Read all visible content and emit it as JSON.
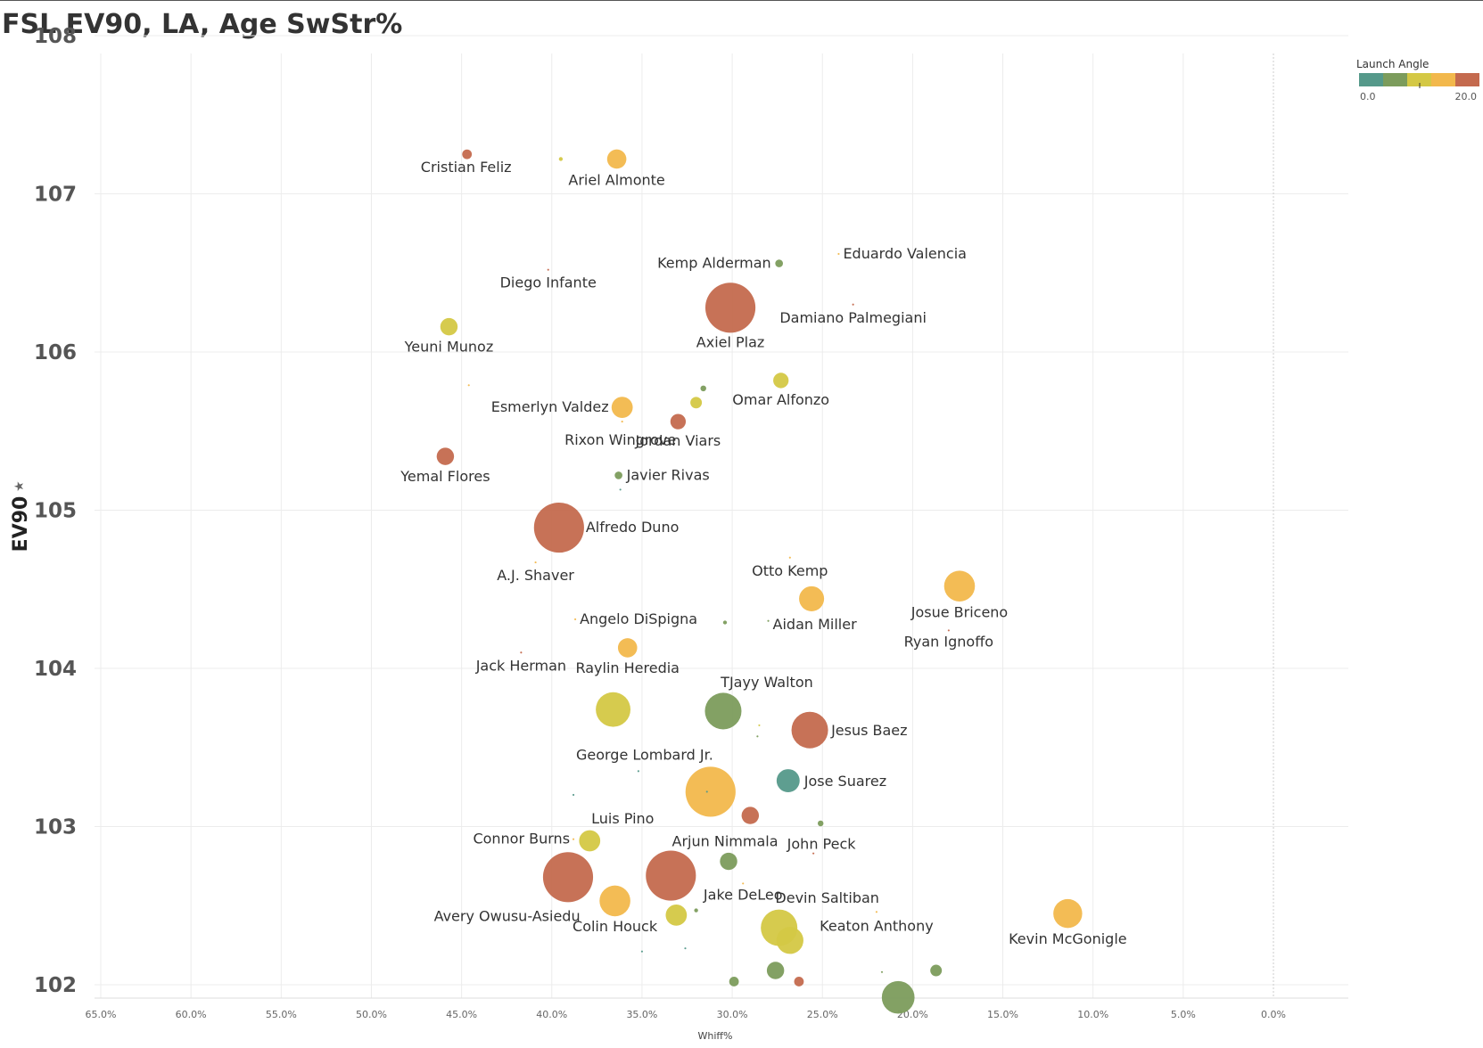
{
  "title": "FSL EV90, LA, Age SwStr%",
  "chart_data": {
    "type": "scatter",
    "title": "FSL EV90, LA, Age SwStr%",
    "xlabel": "Whiff%",
    "ylabel": "EV90",
    "x_reversed": true,
    "xlim": [
      0.665,
      -0.04
    ],
    "ylim": [
      101.9,
      108.1
    ],
    "x_ticks": [
      0.65,
      0.6,
      0.55,
      0.5,
      0.45,
      0.4,
      0.35,
      0.3,
      0.25,
      0.2,
      0.15,
      0.1,
      0.05,
      0.0
    ],
    "x_tick_labels": [
      "65.0%",
      "60.0%",
      "55.0%",
      "50.0%",
      "45.0%",
      "40.0%",
      "35.0%",
      "30.0%",
      "25.0%",
      "20.0%",
      "15.0%",
      "10.0%",
      "5.0%",
      "0.0%"
    ],
    "y_ticks": [
      102,
      103,
      104,
      105,
      106,
      107,
      108
    ],
    "y_tick_labels": [
      "102",
      "103",
      "104",
      "105",
      "106",
      "107",
      "108"
    ],
    "grid": true,
    "legend": {
      "title": "Launch Angle",
      "placement": "top-right",
      "min_label": "0.0",
      "max_label": "20.0",
      "colors": [
        "#55998a",
        "#7c9c5c",
        "#d4c845",
        "#f2b84c",
        "#c46a4e"
      ]
    },
    "points": [
      {
        "name": "Cristian Feliz",
        "x": 0.447,
        "y": 107.25,
        "size": 5,
        "la": 20.0
      },
      {
        "name": "",
        "x": 0.395,
        "y": 107.22,
        "size": 2,
        "la": 10.0
      },
      {
        "name": "Ariel Almonte",
        "x": 0.364,
        "y": 107.22,
        "size": 10,
        "la": 15.0
      },
      {
        "name": "Eduardo Valencia",
        "x": 0.241,
        "y": 106.62,
        "size": 1,
        "la": 15.0
      },
      {
        "name": "Kemp Alderman",
        "x": 0.274,
        "y": 106.56,
        "size": 4,
        "la": 5.0
      },
      {
        "name": "Diego Infante",
        "x": 0.402,
        "y": 106.52,
        "size": 1,
        "la": 20.0
      },
      {
        "name": "Axiel Plaz",
        "x": 0.301,
        "y": 106.28,
        "size": 26,
        "la": 20.0
      },
      {
        "name": "Damiano Palmegiani",
        "x": 0.233,
        "y": 106.3,
        "size": 1,
        "la": 20.0
      },
      {
        "name": "Yeuni Munoz",
        "x": 0.457,
        "y": 106.16,
        "size": 9,
        "la": 10.0
      },
      {
        "name": "Omar Alfonzo",
        "x": 0.273,
        "y": 105.82,
        "size": 8,
        "la": 10.0
      },
      {
        "name": "",
        "x": 0.446,
        "y": 105.79,
        "size": 1,
        "la": 15.0
      },
      {
        "name": "",
        "x": 0.316,
        "y": 105.77,
        "size": 3,
        "la": 5.0
      },
      {
        "name": "",
        "x": 0.32,
        "y": 105.68,
        "size": 6,
        "la": 10.0
      },
      {
        "name": "Esmerlyn Valdez",
        "x": 0.361,
        "y": 105.65,
        "size": 11,
        "la": 15.0
      },
      {
        "name": "Jordan Viars",
        "x": 0.33,
        "y": 105.56,
        "size": 8,
        "la": 20.0
      },
      {
        "name": "Rixon Wingrove",
        "x": 0.361,
        "y": 105.56,
        "size": 1,
        "la": 15.0
      },
      {
        "name": "Yemal Flores",
        "x": 0.459,
        "y": 105.34,
        "size": 9,
        "la": 20.0
      },
      {
        "name": "Javier Rivas",
        "x": 0.363,
        "y": 105.22,
        "size": 4,
        "la": 5.0
      },
      {
        "name": "",
        "x": 0.362,
        "y": 105.13,
        "size": 1,
        "la": 0.0
      },
      {
        "name": "Alfredo Duno",
        "x": 0.396,
        "y": 104.89,
        "size": 26,
        "la": 20.0
      },
      {
        "name": "Otto Kemp",
        "x": 0.268,
        "y": 104.7,
        "size": 1,
        "la": 15.0
      },
      {
        "name": "A.J. Shaver",
        "x": 0.409,
        "y": 104.67,
        "size": 1,
        "la": 15.0
      },
      {
        "name": "Josue Briceno",
        "x": 0.174,
        "y": 104.52,
        "size": 16,
        "la": 15.0
      },
      {
        "name": "",
        "x": 0.256,
        "y": 104.44,
        "size": 13,
        "la": 15.0
      },
      {
        "name": "Angelo DiSpigna",
        "x": 0.387,
        "y": 104.31,
        "size": 1,
        "la": 15.0
      },
      {
        "name": "Aidan Miller",
        "x": 0.28,
        "y": 104.3,
        "size": 1,
        "la": 5.0
      },
      {
        "name": "",
        "x": 0.304,
        "y": 104.29,
        "size": 2,
        "la": 5.0
      },
      {
        "name": "Ryan Ignoffo",
        "x": 0.18,
        "y": 104.24,
        "size": 1,
        "la": 20.0
      },
      {
        "name": "Jack Herman",
        "x": 0.417,
        "y": 104.1,
        "size": 1,
        "la": 20.0
      },
      {
        "name": "Raylin Heredia",
        "x": 0.358,
        "y": 104.13,
        "size": 10,
        "la": 15.0
      },
      {
        "name": "",
        "x": 0.366,
        "y": 103.74,
        "size": 18,
        "la": 10.0
      },
      {
        "name": "TJayy Walton",
        "x": 0.305,
        "y": 103.73,
        "size": 19,
        "la": 5.0
      },
      {
        "name": "",
        "x": 0.285,
        "y": 103.64,
        "size": 1,
        "la": 10.0
      },
      {
        "name": "Jesus Baez",
        "x": 0.257,
        "y": 103.61,
        "size": 19,
        "la": 20.0
      },
      {
        "name": "",
        "x": 0.286,
        "y": 103.57,
        "size": 1,
        "la": 5.0
      },
      {
        "name": "George Lombard Jr.",
        "x": 0.352,
        "y": 103.35,
        "size": 1,
        "la": 0.0
      },
      {
        "name": "Jose Suarez",
        "x": 0.269,
        "y": 103.29,
        "size": 12,
        "la": 0.0
      },
      {
        "name": "",
        "x": 0.312,
        "y": 103.22,
        "size": 26,
        "la": 15.0
      },
      {
        "name": "",
        "x": 0.314,
        "y": 103.22,
        "size": 1,
        "la": 0.0
      },
      {
        "name": "",
        "x": 0.388,
        "y": 103.2,
        "size": 1,
        "la": 0.0
      },
      {
        "name": "Luis Pino",
        "x": 0.29,
        "y": 103.07,
        "size": 9,
        "la": 20.0
      },
      {
        "name": "",
        "x": 0.251,
        "y": 103.02,
        "size": 3,
        "la": 5.0
      },
      {
        "name": "Connor Burns",
        "x": 0.388,
        "y": 102.92,
        "size": 1,
        "la": 15.0
      },
      {
        "name": "",
        "x": 0.379,
        "y": 102.91,
        "size": 11,
        "la": 10.0
      },
      {
        "name": "Arjun Nimmala",
        "x": 0.302,
        "y": 102.78,
        "size": 9,
        "la": 5.0
      },
      {
        "name": "John Peck",
        "x": 0.255,
        "y": 102.83,
        "size": 1,
        "la": 20.0
      },
      {
        "name": "",
        "x": 0.391,
        "y": 102.68,
        "size": 26,
        "la": 20.0
      },
      {
        "name": "",
        "x": 0.334,
        "y": 102.69,
        "size": 26,
        "la": 20.0
      },
      {
        "name": "Jake DeLeo",
        "x": 0.294,
        "y": 102.64,
        "size": 1,
        "la": 15.0
      },
      {
        "name": "Colin Houck",
        "x": 0.365,
        "y": 102.53,
        "size": 16,
        "la": 15.0
      },
      {
        "name": "Avery Owusu-Asiedu",
        "x": 0.32,
        "y": 102.47,
        "size": 2,
        "la": 5.0
      },
      {
        "name": "",
        "x": 0.331,
        "y": 102.44,
        "size": 11,
        "la": 10.0
      },
      {
        "name": "Keaton Anthony",
        "x": 0.22,
        "y": 102.46,
        "size": 1,
        "la": 15.0
      },
      {
        "name": "Kevin McGonigle",
        "x": 0.114,
        "y": 102.45,
        "size": 15,
        "la": 15.0
      },
      {
        "name": "Devin Saltiban",
        "x": 0.274,
        "y": 102.36,
        "size": 19,
        "la": 10.0
      },
      {
        "name": "",
        "x": 0.268,
        "y": 102.28,
        "size": 14,
        "la": 10.0
      },
      {
        "name": "",
        "x": 0.35,
        "y": 102.21,
        "size": 1,
        "la": 0.0
      },
      {
        "name": "",
        "x": 0.326,
        "y": 102.23,
        "size": 1,
        "la": 0.0
      },
      {
        "name": "",
        "x": 0.276,
        "y": 102.09,
        "size": 9,
        "la": 5.0
      },
      {
        "name": "",
        "x": 0.187,
        "y": 102.09,
        "size": 6,
        "la": 5.0
      },
      {
        "name": "",
        "x": 0.217,
        "y": 102.08,
        "size": 1,
        "la": 5.0
      },
      {
        "name": "",
        "x": 0.299,
        "y": 102.02,
        "size": 5,
        "la": 5.0
      },
      {
        "name": "",
        "x": 0.263,
        "y": 102.02,
        "size": 5,
        "la": 20.0
      },
      {
        "name": "",
        "x": 0.208,
        "y": 101.92,
        "size": 17,
        "la": 5.0
      }
    ]
  }
}
